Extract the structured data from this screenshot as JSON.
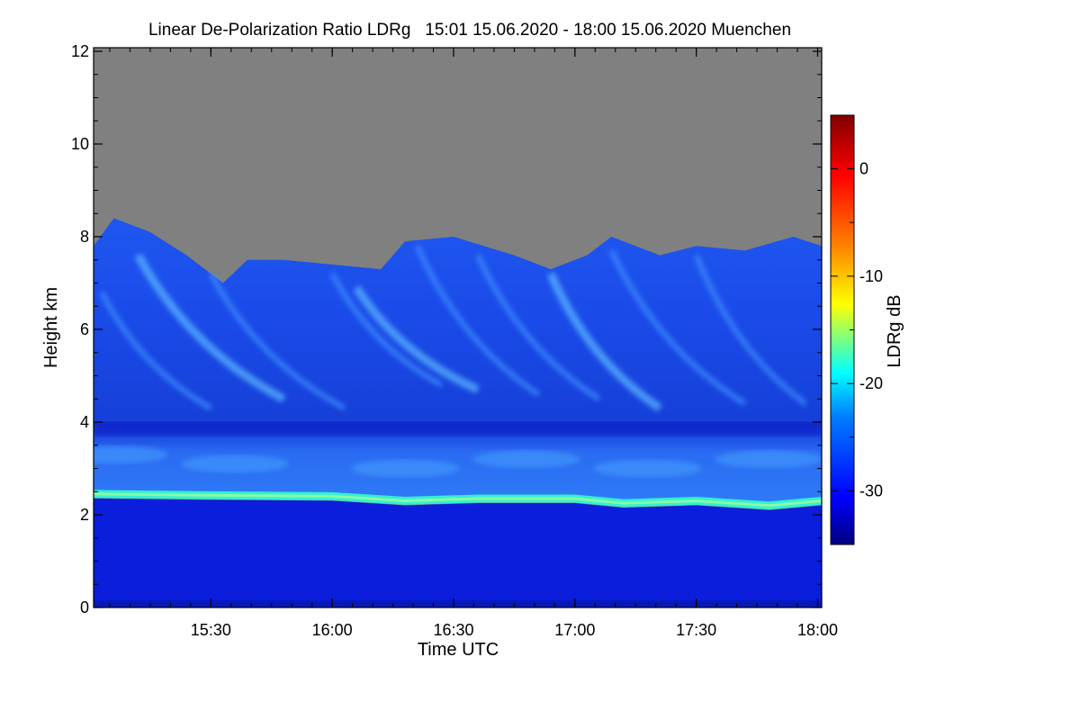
{
  "chart_data": {
    "type": "heatmap",
    "title": "Linear De-Polarization Ratio LDRg   15:01 15.06.2020 - 18:00 15.06.2020 Muenchen",
    "xlabel": "Time UTC",
    "ylabel": "Height km",
    "xlim_hours": [
      15.0167,
      18.0167
    ],
    "ylim": [
      0,
      12
    ],
    "x_ticks": [
      {
        "label": "15:30",
        "value": 15.5
      },
      {
        "label": "16:00",
        "value": 16.0
      },
      {
        "label": "16:30",
        "value": 16.5
      },
      {
        "label": "17:00",
        "value": 17.0
      },
      {
        "label": "17:30",
        "value": 17.5
      },
      {
        "label": "18:00",
        "value": 18.0
      }
    ],
    "y_ticks": [
      {
        "label": "0",
        "value": 0
      },
      {
        "label": "2",
        "value": 2
      },
      {
        "label": "4",
        "value": 4
      },
      {
        "label": "6",
        "value": 6
      },
      {
        "label": "8",
        "value": 8
      },
      {
        "label": "10",
        "value": 10
      },
      {
        "label": "12",
        "value": 12
      }
    ],
    "colorbar": {
      "label": "LDRg dB",
      "range": [
        -35,
        5
      ],
      "ticks": [
        {
          "label": "0",
          "value": 0
        },
        {
          "label": "-10",
          "value": -10
        },
        {
          "label": "-20",
          "value": -20
        },
        {
          "label": "-30",
          "value": -30
        }
      ],
      "colormap": [
        "#00007f",
        "#0000ff",
        "#007fff",
        "#00ffff",
        "#7fff7f",
        "#ffff00",
        "#ff7f00",
        "#ff0000",
        "#7f0000"
      ]
    },
    "no_signal_color": "#808080",
    "layers": [
      {
        "name": "boundary layer",
        "height_km": [
          0,
          2.3
        ],
        "ldr_db": -33
      },
      {
        "name": "melting layer bright band",
        "height_km": [
          2.3,
          2.55
        ],
        "ldr_db": -20
      },
      {
        "name": "stratiform precipitation",
        "height_km": [
          2.55,
          4.0
        ],
        "ldr_db": -27
      },
      {
        "name": "ice cloud with fall streaks",
        "height_km": [
          4.0,
          7.8
        ],
        "ldr_db": -28
      }
    ],
    "cloud_top": [
      {
        "t": 15.0167,
        "h": 7.8
      },
      {
        "t": 15.1,
        "h": 8.4
      },
      {
        "t": 15.25,
        "h": 8.1
      },
      {
        "t": 15.4,
        "h": 7.6
      },
      {
        "t": 15.55,
        "h": 7.0
      },
      {
        "t": 15.65,
        "h": 7.5
      },
      {
        "t": 15.8,
        "h": 7.5
      },
      {
        "t": 16.0,
        "h": 7.4
      },
      {
        "t": 16.2,
        "h": 7.3
      },
      {
        "t": 16.3,
        "h": 7.9
      },
      {
        "t": 16.5,
        "h": 8.0
      },
      {
        "t": 16.75,
        "h": 7.6
      },
      {
        "t": 16.9,
        "h": 7.3
      },
      {
        "t": 17.05,
        "h": 7.6
      },
      {
        "t": 17.15,
        "h": 8.0
      },
      {
        "t": 17.35,
        "h": 7.6
      },
      {
        "t": 17.5,
        "h": 7.8
      },
      {
        "t": 17.7,
        "h": 7.7
      },
      {
        "t": 17.9,
        "h": 8.0
      },
      {
        "t": 18.0167,
        "h": 7.8
      }
    ],
    "melting_layer": [
      {
        "t": 15.0167,
        "h": 2.45
      },
      {
        "t": 15.5,
        "h": 2.42
      },
      {
        "t": 16.0,
        "h": 2.4
      },
      {
        "t": 16.3,
        "h": 2.3
      },
      {
        "t": 16.6,
        "h": 2.35
      },
      {
        "t": 17.0,
        "h": 2.35
      },
      {
        "t": 17.2,
        "h": 2.25
      },
      {
        "t": 17.5,
        "h": 2.3
      },
      {
        "t": 17.8,
        "h": 2.2
      },
      {
        "t": 18.0167,
        "h": 2.3
      }
    ],
    "fall_streaks": [
      {
        "t0": 15.05,
        "h0": 6.8,
        "t1": 15.5,
        "h1": 4.3
      },
      {
        "t0": 15.2,
        "h0": 7.6,
        "t1": 15.8,
        "h1": 4.5
      },
      {
        "t0": 15.5,
        "h0": 7.2,
        "t1": 16.05,
        "h1": 4.3
      },
      {
        "t0": 16.0,
        "h0": 7.2,
        "t1": 16.45,
        "h1": 4.8
      },
      {
        "t0": 16.1,
        "h0": 6.9,
        "t1": 16.6,
        "h1": 4.7
      },
      {
        "t0": 16.35,
        "h0": 7.8,
        "t1": 16.85,
        "h1": 4.6
      },
      {
        "t0": 16.6,
        "h0": 7.6,
        "t1": 17.1,
        "h1": 4.5
      },
      {
        "t0": 16.9,
        "h0": 7.2,
        "t1": 17.35,
        "h1": 4.3
      },
      {
        "t0": 17.15,
        "h0": 7.7,
        "t1": 17.7,
        "h1": 4.4
      },
      {
        "t0": 17.5,
        "h0": 7.6,
        "t1": 17.95,
        "h1": 4.4
      }
    ]
  }
}
